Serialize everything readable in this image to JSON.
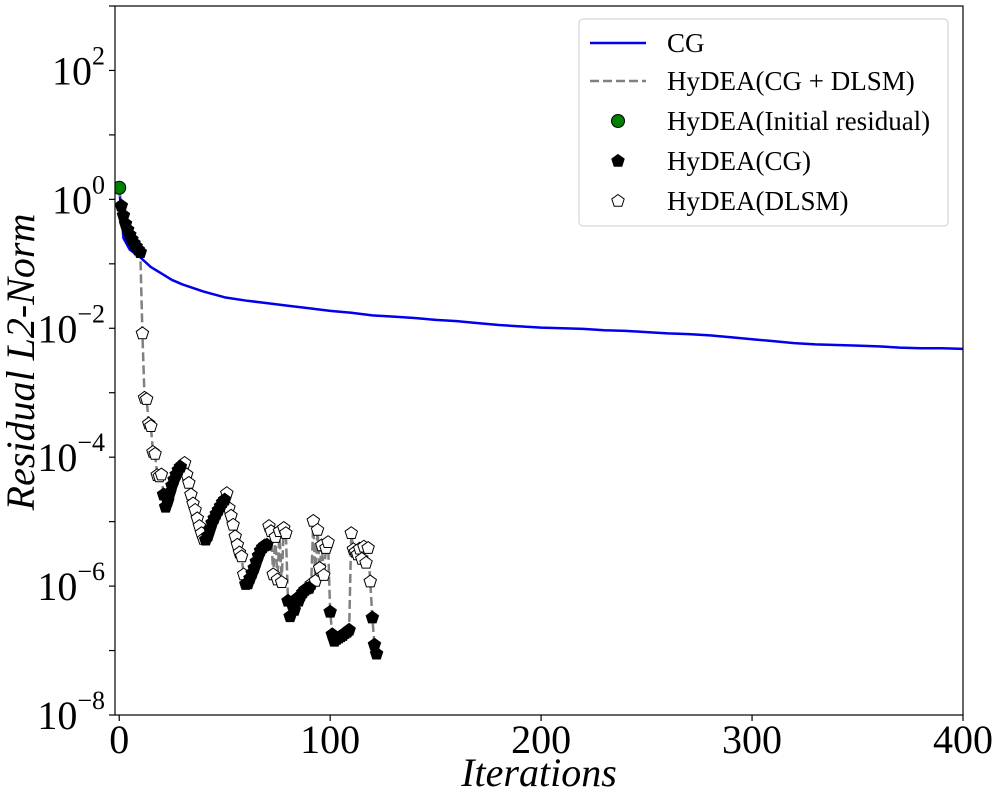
{
  "chart_data": {
    "type": "line",
    "title": "",
    "xlabel": "Iterations",
    "ylabel": "Residual L2-Norm",
    "xlim": [
      -2,
      400
    ],
    "ylim_log10": [
      -8,
      3
    ],
    "yscale": "log",
    "grid": false,
    "legend_position": "top-right",
    "x_ticks": [
      {
        "value": 0,
        "label": "0"
      },
      {
        "value": 100,
        "label": "100"
      },
      {
        "value": 200,
        "label": "200"
      },
      {
        "value": 300,
        "label": "300"
      },
      {
        "value": 400,
        "label": "400"
      }
    ],
    "y_ticks": [
      {
        "exp": 2,
        "base": "10",
        "sup": "2"
      },
      {
        "exp": 0,
        "base": "10",
        "sup": "0"
      },
      {
        "exp": -2,
        "base": "10",
        "sup": "−2"
      },
      {
        "exp": -4,
        "base": "10",
        "sup": "−4"
      },
      {
        "exp": -6,
        "base": "10",
        "sup": "−6"
      },
      {
        "exp": -8,
        "base": "10",
        "sup": "−8"
      }
    ],
    "series": [
      {
        "name": "CG",
        "kind": "line",
        "color": "#0000ee",
        "points": [
          [
            0,
            0.18
          ],
          [
            2,
            -0.6
          ],
          [
            5,
            -0.78
          ],
          [
            10,
            -0.9
          ],
          [
            15,
            -1.05
          ],
          [
            20,
            -1.15
          ],
          [
            25,
            -1.25
          ],
          [
            30,
            -1.32
          ],
          [
            40,
            -1.43
          ],
          [
            50,
            -1.52
          ],
          [
            60,
            -1.57
          ],
          [
            70,
            -1.61
          ],
          [
            80,
            -1.65
          ],
          [
            90,
            -1.69
          ],
          [
            100,
            -1.73
          ],
          [
            110,
            -1.76
          ],
          [
            120,
            -1.8
          ],
          [
            130,
            -1.82
          ],
          [
            140,
            -1.84
          ],
          [
            150,
            -1.87
          ],
          [
            160,
            -1.89
          ],
          [
            170,
            -1.92
          ],
          [
            180,
            -1.95
          ],
          [
            190,
            -1.97
          ],
          [
            200,
            -1.99
          ],
          [
            210,
            -2.0
          ],
          [
            220,
            -2.01
          ],
          [
            230,
            -2.03
          ],
          [
            240,
            -2.04
          ],
          [
            250,
            -2.06
          ],
          [
            260,
            -2.08
          ],
          [
            270,
            -2.09
          ],
          [
            280,
            -2.11
          ],
          [
            290,
            -2.14
          ],
          [
            300,
            -2.17
          ],
          [
            310,
            -2.2
          ],
          [
            320,
            -2.23
          ],
          [
            330,
            -2.25
          ],
          [
            340,
            -2.26
          ],
          [
            350,
            -2.27
          ],
          [
            360,
            -2.28
          ],
          [
            370,
            -2.3
          ],
          [
            380,
            -2.31
          ],
          [
            390,
            -2.31
          ],
          [
            400,
            -2.32
          ]
        ]
      },
      {
        "name": "HyDEA(CG + DLSM)",
        "kind": "dashed-line",
        "color": "#808080",
        "points": [
          [
            0,
            0.18
          ],
          [
            1,
            -0.1
          ],
          [
            2,
            -0.25
          ],
          [
            3,
            -0.38
          ],
          [
            4,
            -0.47
          ],
          [
            5,
            -0.55
          ],
          [
            6,
            -0.62
          ],
          [
            7,
            -0.68
          ],
          [
            8,
            -0.73
          ],
          [
            9,
            -0.78
          ],
          [
            10,
            -0.82
          ],
          [
            11,
            -2.08
          ],
          [
            12,
            -3.08
          ],
          [
            13,
            -3.1
          ],
          [
            14,
            -3.48
          ],
          [
            15,
            -3.52
          ],
          [
            16,
            -3.92
          ],
          [
            17,
            -3.95
          ],
          [
            18,
            -4.28
          ],
          [
            19,
            -4.3
          ],
          [
            20,
            -4.27
          ],
          [
            21,
            -4.58
          ],
          [
            22,
            -4.77
          ],
          [
            23,
            -4.68
          ],
          [
            24,
            -4.55
          ],
          [
            25,
            -4.44
          ],
          [
            26,
            -4.35
          ],
          [
            27,
            -4.27
          ],
          [
            28,
            -4.2
          ],
          [
            29,
            -4.15
          ],
          [
            30,
            -4.12
          ],
          [
            31,
            -4.09
          ],
          [
            32,
            -4.27
          ],
          [
            33,
            -4.4
          ],
          [
            34,
            -4.58
          ],
          [
            35,
            -4.72
          ],
          [
            36,
            -4.82
          ],
          [
            37,
            -4.95
          ],
          [
            38,
            -5.07
          ],
          [
            39,
            -5.18
          ],
          [
            40,
            -5.27
          ],
          [
            41,
            -5.28
          ],
          [
            42,
            -5.22
          ],
          [
            43,
            -5.12
          ],
          [
            44,
            -5.02
          ],
          [
            45,
            -4.95
          ],
          [
            46,
            -4.88
          ],
          [
            47,
            -4.82
          ],
          [
            48,
            -4.76
          ],
          [
            49,
            -4.7
          ],
          [
            50,
            -4.66
          ],
          [
            51,
            -4.56
          ],
          [
            52,
            -4.79
          ],
          [
            53,
            -4.91
          ],
          [
            54,
            -5.05
          ],
          [
            55,
            -5.23
          ],
          [
            56,
            -5.36
          ],
          [
            57,
            -5.48
          ],
          [
            58,
            -5.54
          ],
          [
            59,
            -5.82
          ],
          [
            60,
            -5.97
          ],
          [
            61,
            -5.96
          ],
          [
            62,
            -5.88
          ],
          [
            63,
            -5.8
          ],
          [
            64,
            -5.72
          ],
          [
            65,
            -5.62
          ],
          [
            66,
            -5.53
          ],
          [
            67,
            -5.45
          ],
          [
            68,
            -5.4
          ],
          [
            69,
            -5.37
          ],
          [
            70,
            -5.36
          ],
          [
            71,
            -5.07
          ],
          [
            72,
            -5.15
          ],
          [
            73,
            -5.82
          ],
          [
            74,
            -5.24
          ],
          [
            75,
            -5.9
          ],
          [
            76,
            -5.15
          ],
          [
            77,
            -5.94
          ],
          [
            78,
            -5.1
          ],
          [
            79,
            -5.18
          ],
          [
            80,
            -6.23
          ],
          [
            81,
            -6.47
          ],
          [
            82,
            -6.28
          ],
          [
            83,
            -6.37
          ],
          [
            84,
            -6.2
          ],
          [
            85,
            -6.23
          ],
          [
            86,
            -6.15
          ],
          [
            87,
            -6.1
          ],
          [
            88,
            -6.06
          ],
          [
            89,
            -6.04
          ],
          [
            90,
            -6.03
          ],
          [
            91,
            -5.97
          ],
          [
            92,
            -4.99
          ],
          [
            93,
            -5.92
          ],
          [
            94,
            -5.13
          ],
          [
            95,
            -5.72
          ],
          [
            96,
            -5.37
          ],
          [
            97,
            -5.83
          ],
          [
            98,
            -5.41
          ],
          [
            99,
            -5.32
          ],
          [
            100,
            -6.4
          ],
          [
            101,
            -6.75
          ],
          [
            102,
            -6.85
          ],
          [
            103,
            -6.82
          ],
          [
            104,
            -6.8
          ],
          [
            105,
            -6.78
          ],
          [
            106,
            -6.76
          ],
          [
            107,
            -6.73
          ],
          [
            108,
            -6.71
          ],
          [
            109,
            -6.68
          ],
          [
            110,
            -5.18
          ],
          [
            111,
            -5.43
          ],
          [
            112,
            -5.47
          ],
          [
            113,
            -5.51
          ],
          [
            114,
            -5.42
          ],
          [
            115,
            -5.58
          ],
          [
            116,
            -5.39
          ],
          [
            117,
            -5.64
          ],
          [
            118,
            -5.41
          ],
          [
            119,
            -5.93
          ],
          [
            120,
            -6.49
          ],
          [
            121,
            -6.91
          ],
          [
            122,
            -7.05
          ]
        ]
      },
      {
        "name": "HyDEA(Initial residual)",
        "kind": "marker-circle",
        "color": "#008000",
        "points": [
          [
            0,
            0.18
          ]
        ]
      },
      {
        "name": "HyDEA(CG)",
        "kind": "marker-pentagon-filled",
        "color": "#000000",
        "points": [
          [
            1,
            -0.1
          ],
          [
            2,
            -0.25
          ],
          [
            3,
            -0.38
          ],
          [
            4,
            -0.47
          ],
          [
            5,
            -0.55
          ],
          [
            6,
            -0.62
          ],
          [
            7,
            -0.68
          ],
          [
            8,
            -0.73
          ],
          [
            9,
            -0.78
          ],
          [
            10,
            -0.82
          ],
          [
            21,
            -4.58
          ],
          [
            22,
            -4.77
          ],
          [
            23,
            -4.68
          ],
          [
            24,
            -4.55
          ],
          [
            25,
            -4.44
          ],
          [
            26,
            -4.35
          ],
          [
            27,
            -4.27
          ],
          [
            28,
            -4.2
          ],
          [
            29,
            -4.15
          ],
          [
            41,
            -5.28
          ],
          [
            42,
            -5.22
          ],
          [
            43,
            -5.12
          ],
          [
            44,
            -5.02
          ],
          [
            45,
            -4.95
          ],
          [
            46,
            -4.88
          ],
          [
            47,
            -4.82
          ],
          [
            48,
            -4.76
          ],
          [
            49,
            -4.7
          ],
          [
            50,
            -4.66
          ],
          [
            60,
            -5.97
          ],
          [
            61,
            -5.96
          ],
          [
            62,
            -5.88
          ],
          [
            63,
            -5.8
          ],
          [
            64,
            -5.72
          ],
          [
            65,
            -5.62
          ],
          [
            66,
            -5.53
          ],
          [
            67,
            -5.45
          ],
          [
            68,
            -5.4
          ],
          [
            69,
            -5.37
          ],
          [
            70,
            -5.36
          ],
          [
            80,
            -6.23
          ],
          [
            81,
            -6.47
          ],
          [
            82,
            -6.28
          ],
          [
            83,
            -6.37
          ],
          [
            84,
            -6.2
          ],
          [
            85,
            -6.23
          ],
          [
            86,
            -6.15
          ],
          [
            87,
            -6.1
          ],
          [
            88,
            -6.06
          ],
          [
            89,
            -6.04
          ],
          [
            90,
            -6.03
          ],
          [
            100,
            -6.4
          ],
          [
            101,
            -6.75
          ],
          [
            102,
            -6.85
          ],
          [
            103,
            -6.82
          ],
          [
            104,
            -6.8
          ],
          [
            105,
            -6.78
          ],
          [
            106,
            -6.76
          ],
          [
            107,
            -6.73
          ],
          [
            108,
            -6.71
          ],
          [
            109,
            -6.68
          ],
          [
            120,
            -6.49
          ],
          [
            121,
            -6.91
          ],
          [
            122,
            -7.05
          ]
        ]
      },
      {
        "name": "HyDEA(DLSM)",
        "kind": "marker-pentagon-open",
        "color": "#000000",
        "points": [
          [
            11,
            -2.08
          ],
          [
            12,
            -3.08
          ],
          [
            13,
            -3.1
          ],
          [
            14,
            -3.48
          ],
          [
            15,
            -3.52
          ],
          [
            16,
            -3.92
          ],
          [
            17,
            -3.95
          ],
          [
            18,
            -4.28
          ],
          [
            19,
            -4.3
          ],
          [
            20,
            -4.27
          ],
          [
            30,
            -4.12
          ],
          [
            31,
            -4.09
          ],
          [
            32,
            -4.27
          ],
          [
            33,
            -4.4
          ],
          [
            34,
            -4.58
          ],
          [
            35,
            -4.72
          ],
          [
            36,
            -4.82
          ],
          [
            37,
            -4.95
          ],
          [
            38,
            -5.07
          ],
          [
            39,
            -5.18
          ],
          [
            40,
            -5.27
          ],
          [
            51,
            -4.56
          ],
          [
            52,
            -4.79
          ],
          [
            53,
            -4.91
          ],
          [
            54,
            -5.05
          ],
          [
            55,
            -5.23
          ],
          [
            56,
            -5.36
          ],
          [
            57,
            -5.48
          ],
          [
            58,
            -5.54
          ],
          [
            59,
            -5.82
          ],
          [
            71,
            -5.07
          ],
          [
            72,
            -5.15
          ],
          [
            73,
            -5.82
          ],
          [
            74,
            -5.24
          ],
          [
            75,
            -5.9
          ],
          [
            76,
            -5.15
          ],
          [
            77,
            -5.94
          ],
          [
            78,
            -5.1
          ],
          [
            79,
            -5.18
          ],
          [
            91,
            -5.97
          ],
          [
            92,
            -4.99
          ],
          [
            93,
            -5.92
          ],
          [
            94,
            -5.13
          ],
          [
            95,
            -5.72
          ],
          [
            96,
            -5.37
          ],
          [
            97,
            -5.83
          ],
          [
            98,
            -5.41
          ],
          [
            99,
            -5.32
          ],
          [
            110,
            -5.18
          ],
          [
            111,
            -5.43
          ],
          [
            112,
            -5.47
          ],
          [
            113,
            -5.51
          ],
          [
            114,
            -5.42
          ],
          [
            115,
            -5.58
          ],
          [
            116,
            -5.39
          ],
          [
            117,
            -5.64
          ],
          [
            118,
            -5.41
          ],
          [
            119,
            -5.93
          ]
        ]
      }
    ],
    "legend": [
      {
        "label": "CG",
        "kind": "line",
        "color": "#0000ee"
      },
      {
        "label": "HyDEA(CG + DLSM)",
        "kind": "dashed-line",
        "color": "#808080"
      },
      {
        "label": "HyDEA(Initial residual)",
        "kind": "marker-circle",
        "color": "#008000"
      },
      {
        "label": "HyDEA(CG)",
        "kind": "marker-pentagon-filled",
        "color": "#000000"
      },
      {
        "label": "HyDEA(DLSM)",
        "kind": "marker-pentagon-open",
        "color": "#000000"
      }
    ]
  }
}
